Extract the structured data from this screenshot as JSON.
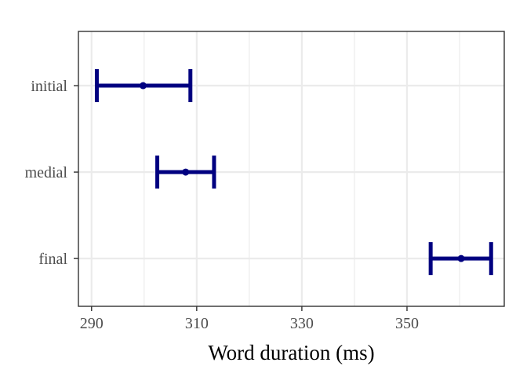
{
  "chart_data": {
    "type": "errorbar",
    "title": "",
    "xlabel": "Word duration (ms)",
    "ylabel": "",
    "xlim": [
      287.5,
      368.5
    ],
    "x_ticks": [
      290,
      310,
      330,
      350
    ],
    "x_minor_ticks": [
      300,
      320,
      340,
      360
    ],
    "categories": [
      "initial",
      "medial",
      "final"
    ],
    "means": [
      299.8,
      307.9,
      360.3
    ],
    "lower": [
      291.0,
      302.5,
      354.5
    ],
    "upper": [
      308.8,
      313.3,
      366.0
    ],
    "grid": true,
    "colors": {
      "series": "#000080",
      "grid": "#ebebeb",
      "panel_border": "#333333",
      "tick": "#333333"
    }
  }
}
